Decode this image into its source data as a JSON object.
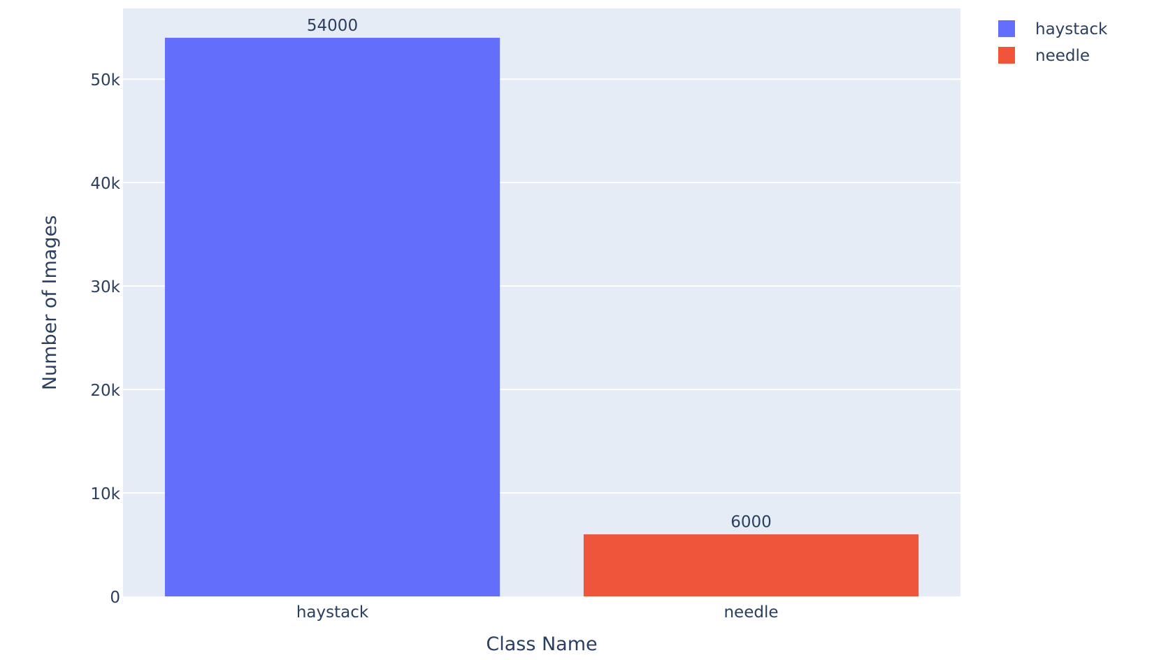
{
  "chart_data": {
    "type": "bar",
    "categories": [
      "haystack",
      "needle"
    ],
    "series": [
      {
        "name": "haystack",
        "x": "haystack",
        "value": 54000,
        "color": "#636efa"
      },
      {
        "name": "needle",
        "x": "needle",
        "value": 6000,
        "color": "#ef553b"
      }
    ],
    "data_labels": [
      "54000",
      "6000"
    ],
    "xlabel": "Class Name",
    "ylabel": "Number of Images",
    "ylim": [
      0,
      56842
    ],
    "yticks": [
      0,
      10000,
      20000,
      30000,
      40000,
      50000
    ],
    "ytick_labels": [
      "0",
      "10k",
      "20k",
      "30k",
      "40k",
      "50k"
    ],
    "grid": true,
    "legend_position": "top-right",
    "plot_background": "#e5ecf6",
    "grid_color": "#ffffff"
  }
}
